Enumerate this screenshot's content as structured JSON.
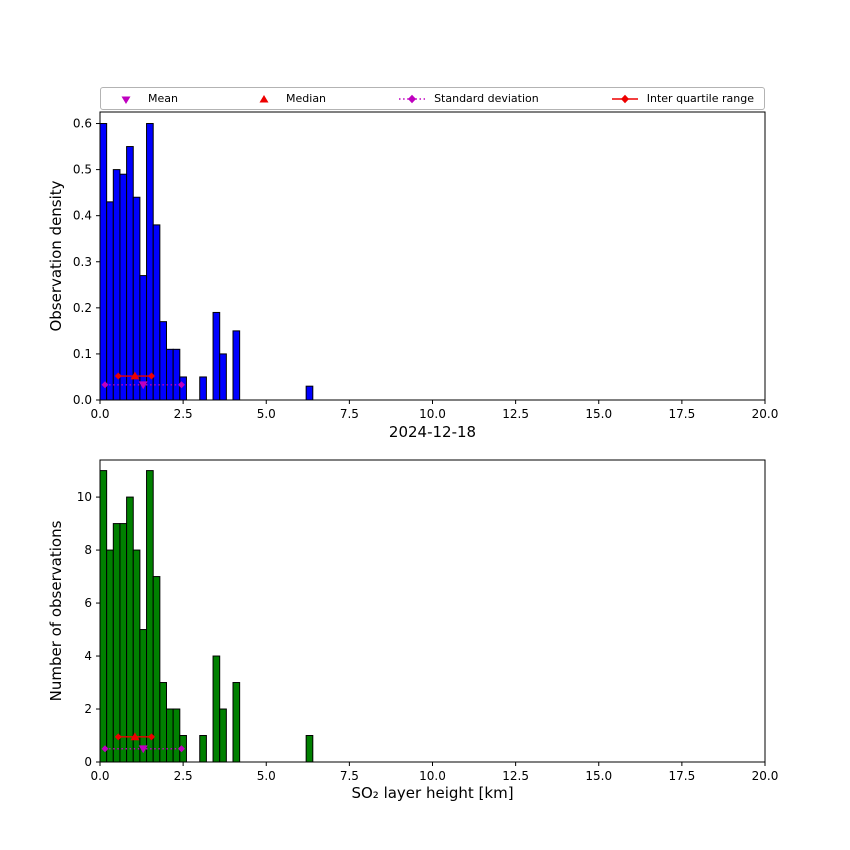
{
  "figure": {
    "title": "2024-12-18",
    "background": "#ffffff"
  },
  "legend": {
    "items": [
      {
        "label": "Mean",
        "marker": "triangle-down",
        "color": "#bf00bf",
        "linestyle": "none"
      },
      {
        "label": "Median",
        "marker": "triangle-up",
        "color": "#ee0000",
        "linestyle": "none"
      },
      {
        "label": "Standard deviation",
        "marker": "diamond",
        "color": "#bf00bf",
        "linestyle": "dotted"
      },
      {
        "label": "Inter quartile range",
        "marker": "diamond",
        "color": "#ee0000",
        "linestyle": "solid"
      }
    ]
  },
  "chart_data": [
    {
      "type": "bar",
      "subtype": "histogram",
      "ylabel": "Observation density",
      "xlabel": "",
      "bar_color": "#0000ff",
      "edge_color": "#000000",
      "bin_start": 0.0,
      "bin_width": 0.2,
      "values": [
        0.6,
        0.43,
        0.5,
        0.49,
        0.55,
        0.44,
        0.27,
        0.6,
        0.38,
        0.17,
        0.11,
        0.11,
        0.05,
        0,
        0,
        0.05,
        0,
        0.19,
        0.1,
        0,
        0.15,
        0,
        0,
        0,
        0,
        0,
        0,
        0,
        0,
        0,
        0,
        0.03
      ],
      "xlim": [
        0,
        20
      ],
      "ylim": [
        0,
        0.625
      ],
      "grid": false,
      "xticks": [
        0.0,
        2.5,
        5.0,
        7.5,
        10.0,
        12.5,
        15.0,
        17.5,
        20.0
      ],
      "xtick_labels": [
        "0.0",
        "2.5",
        "5.0",
        "7.5",
        "10.0",
        "12.5",
        "15.0",
        "17.5",
        "20.0"
      ],
      "yticks": [
        0.0,
        0.1,
        0.2,
        0.3,
        0.4,
        0.5,
        0.6
      ],
      "ytick_labels": [
        "0.0",
        "0.1",
        "0.2",
        "0.3",
        "0.4",
        "0.5",
        "0.6"
      ],
      "stats": {
        "mean": 1.3,
        "median": 1.05,
        "q1": 0.55,
        "q3": 1.55,
        "std_low": 0.15,
        "std_high": 2.45,
        "iqr_y": 0.052,
        "std_y": 0.033
      }
    },
    {
      "type": "bar",
      "subtype": "histogram",
      "ylabel": "Number of observations",
      "xlabel": "SO₂ layer height [km]",
      "bar_color": "#008000",
      "edge_color": "#000000",
      "bin_start": 0.0,
      "bin_width": 0.2,
      "values": [
        11,
        8,
        9,
        9,
        10,
        8,
        5,
        11,
        7,
        3,
        2,
        2,
        1,
        0,
        0,
        1,
        0,
        4,
        2,
        0,
        3,
        0,
        0,
        0,
        0,
        0,
        0,
        0,
        0,
        0,
        0,
        1
      ],
      "xlim": [
        0,
        20
      ],
      "ylim": [
        0,
        11.4
      ],
      "grid": false,
      "xticks": [
        0.0,
        2.5,
        5.0,
        7.5,
        10.0,
        12.5,
        15.0,
        17.5,
        20.0
      ],
      "xtick_labels": [
        "0.0",
        "2.5",
        "5.0",
        "7.5",
        "10.0",
        "12.5",
        "15.0",
        "17.5",
        "20.0"
      ],
      "yticks": [
        0,
        2,
        4,
        6,
        8,
        10
      ],
      "ytick_labels": [
        "0",
        "2",
        "4",
        "6",
        "8",
        "10"
      ],
      "stats": {
        "mean": 1.3,
        "median": 1.05,
        "q1": 0.55,
        "q3": 1.55,
        "std_low": 0.15,
        "std_high": 2.45,
        "iqr_y": 0.95,
        "std_y": 0.5
      }
    }
  ]
}
